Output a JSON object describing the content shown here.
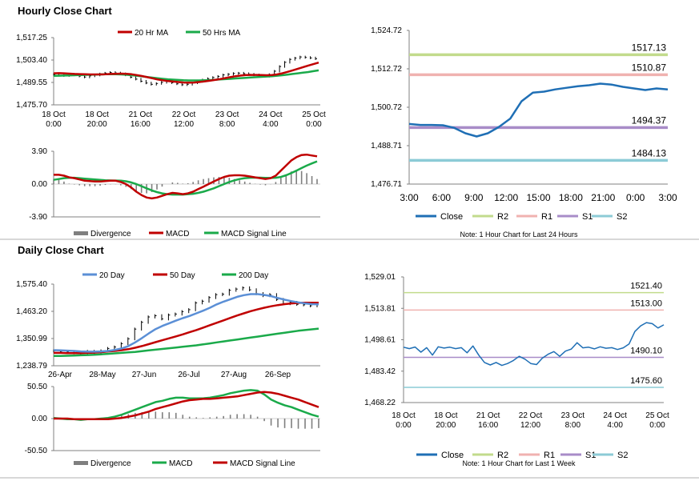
{
  "colors": {
    "ma20_hourly": "#c00000",
    "ma50_hourly": "#1aaa4a",
    "close": "#1f6fb5",
    "r2": "#c2db8c",
    "r1": "#f0b2b0",
    "s1": "#a88cc8",
    "s2": "#8ccbd6",
    "ma20_daily": "#5b8fd6",
    "ma50_daily": "#c00000",
    "ma200_daily": "#1aaa4a",
    "divergence": "#7f7f7f",
    "price": "#000000"
  },
  "sections": {
    "hourly": {
      "title": "Hourly Close Chart"
    },
    "daily": {
      "title": "Daily Close Chart"
    }
  },
  "chart_data": [
    {
      "id": "hourly_price",
      "type": "line",
      "legend": [
        "20 Hr MA",
        "50 Hrs MA"
      ],
      "ylim": [
        1475.7,
        1517.25
      ],
      "yticks": [
        "1,517.25",
        "1,503.40",
        "1,489.55",
        "1,475.70"
      ],
      "x_labels": [
        {
          "line1": "18 Oct",
          "line2": "0:00"
        },
        {
          "line1": "18 Oct",
          "line2": "20:00"
        },
        {
          "line1": "21 Oct",
          "line2": "16:00"
        },
        {
          "line1": "22 Oct",
          "line2": "12:00"
        },
        {
          "line1": "23 Oct",
          "line2": "8:00"
        },
        {
          "line1": "24 Oct",
          "line2": "4:00"
        },
        {
          "line1": "25 Oct",
          "line2": "0:00"
        }
      ],
      "series": [
        {
          "name": "Price",
          "values": [
            1494.5,
            1495.0,
            1493.8,
            1494.6,
            1494.2,
            1493.5,
            1492.9,
            1493.6,
            1494.1,
            1494.8,
            1495.3,
            1495.7,
            1495.4,
            1494.9,
            1494.2,
            1492.8,
            1491.6,
            1490.3,
            1489.2,
            1488.4,
            1488.9,
            1489.6,
            1490.1,
            1489.4,
            1488.7,
            1488.1,
            1488.4,
            1489.3,
            1490.2,
            1491.1,
            1491.9,
            1492.6,
            1493.3,
            1494.2,
            1494.6,
            1495.1,
            1495.3,
            1495.0,
            1494.6,
            1494.2,
            1493.7,
            1493.4,
            1494.4,
            1496.5,
            1499.4,
            1502.0,
            1503.8,
            1504.6,
            1505.3,
            1505.0,
            1504.7,
            1504.2
          ]
        },
        {
          "name": "20 Hr MA",
          "values": [
            1495.2,
            1495.3,
            1495.2,
            1495.0,
            1494.8,
            1494.7,
            1494.6,
            1494.5,
            1494.5,
            1494.5,
            1494.6,
            1494.8,
            1494.9,
            1495.0,
            1494.9,
            1494.6,
            1494.1,
            1493.5,
            1492.8,
            1492.1,
            1491.4,
            1490.9,
            1490.4,
            1490.1,
            1489.8,
            1489.5,
            1489.4,
            1489.5,
            1489.8,
            1490.2,
            1490.6,
            1491.1,
            1491.6,
            1492.2,
            1492.8,
            1493.4,
            1493.8,
            1494.1,
            1494.2,
            1494.2,
            1494.1,
            1494.0,
            1494.1,
            1494.5,
            1495.2,
            1496.1,
            1497.0,
            1498.0,
            1499.0,
            1500.0,
            1500.9,
            1501.8
          ]
        },
        {
          "name": "50 Hrs MA",
          "values": [
            1493.6,
            1493.7,
            1493.8,
            1493.9,
            1494.0,
            1494.1,
            1494.2,
            1494.3,
            1494.4,
            1494.5,
            1494.6,
            1494.6,
            1494.6,
            1494.5,
            1494.3,
            1494.0,
            1493.7,
            1493.3,
            1492.9,
            1492.5,
            1492.1,
            1491.8,
            1491.5,
            1491.3,
            1491.1,
            1490.9,
            1490.8,
            1490.8,
            1490.8,
            1490.9,
            1491.0,
            1491.2,
            1491.4,
            1491.6,
            1491.8,
            1492.0,
            1492.2,
            1492.4,
            1492.6,
            1492.8,
            1493.0,
            1493.2,
            1493.4,
            1493.7,
            1494.0,
            1494.4,
            1494.8,
            1495.2,
            1495.6,
            1496.0,
            1496.5,
            1497.0
          ]
        }
      ]
    },
    {
      "id": "hourly_macd",
      "type": "line",
      "legend": [
        "Divergence",
        "MACD",
        "MACD Signal Line"
      ],
      "ylim": [
        -3.9,
        3.9
      ],
      "yticks": [
        "3.90",
        "0.00",
        "-3.90"
      ],
      "series": [
        {
          "name": "MACD",
          "values": [
            1.1,
            1.1,
            1.0,
            0.8,
            0.7,
            0.55,
            0.4,
            0.35,
            0.3,
            0.3,
            0.35,
            0.4,
            0.4,
            0.25,
            0.0,
            -0.4,
            -0.9,
            -1.3,
            -1.6,
            -1.7,
            -1.6,
            -1.4,
            -1.2,
            -1.05,
            -1.1,
            -1.2,
            -1.1,
            -0.9,
            -0.6,
            -0.3,
            0.0,
            0.3,
            0.6,
            0.85,
            1.0,
            1.05,
            1.05,
            1.0,
            0.9,
            0.8,
            0.7,
            0.6,
            0.7,
            1.0,
            1.6,
            2.2,
            2.8,
            3.2,
            3.45,
            3.5,
            3.4,
            3.3
          ]
        },
        {
          "name": "MACD Signal Line",
          "values": [
            0.5,
            0.6,
            0.7,
            0.75,
            0.75,
            0.7,
            0.65,
            0.6,
            0.55,
            0.5,
            0.45,
            0.43,
            0.42,
            0.4,
            0.33,
            0.2,
            0.0,
            -0.25,
            -0.5,
            -0.75,
            -0.95,
            -1.1,
            -1.2,
            -1.25,
            -1.25,
            -1.25,
            -1.2,
            -1.15,
            -1.05,
            -0.9,
            -0.7,
            -0.5,
            -0.25,
            0.0,
            0.25,
            0.45,
            0.6,
            0.7,
            0.75,
            0.77,
            0.76,
            0.74,
            0.72,
            0.75,
            0.85,
            1.05,
            1.3,
            1.6,
            1.9,
            2.2,
            2.45,
            2.7
          ]
        }
      ]
    },
    {
      "id": "hourly_24h",
      "type": "line",
      "ylim": [
        1476.71,
        1524.72
      ],
      "yticks": [
        "1,524.72",
        "1,512.72",
        "1,500.72",
        "1,488.71",
        "1,476.71"
      ],
      "x_labels": [
        "3:00",
        "6:00",
        "9:00",
        "12:00",
        "15:00",
        "18:00",
        "21:00",
        "0:00",
        "3:00"
      ],
      "levels": [
        {
          "name": "R2",
          "value": 1517.13,
          "label": "1517.13"
        },
        {
          "name": "R1",
          "value": 1510.87,
          "label": "1510.87"
        },
        {
          "name": "S1",
          "value": 1494.37,
          "label": "1494.37"
        },
        {
          "name": "S2",
          "value": 1484.13,
          "label": "1484.13"
        }
      ],
      "legend": [
        "Close",
        "R2",
        "R1",
        "S1",
        "S2"
      ],
      "note": "Note: 1 Hour Chart for Last 24 Hours",
      "series": [
        {
          "name": "Close",
          "values": [
            1495.5,
            1495.2,
            1495.2,
            1495.1,
            1494.3,
            1492.6,
            1491.6,
            1492.6,
            1494.6,
            1497.2,
            1502.6,
            1505.3,
            1505.6,
            1506.3,
            1506.8,
            1507.3,
            1507.6,
            1508.1,
            1507.8,
            1507.1,
            1506.6,
            1506.1,
            1506.6,
            1506.3
          ]
        }
      ]
    },
    {
      "id": "daily_price",
      "type": "line",
      "legend": [
        "20 Day",
        "50 Day",
        "200 Day"
      ],
      "ylim": [
        1238.79,
        1575.4
      ],
      "yticks": [
        "1,575.40",
        "1,463.20",
        "1,350.99",
        "1,238.79"
      ],
      "x_labels": [
        "26-Apr",
        "28-May",
        "27-Jun",
        "26-Jul",
        "27-Aug",
        "26-Sep"
      ],
      "series": [
        {
          "name": "Price",
          "values": [
            1300,
            1298,
            1295,
            1292,
            1290,
            1298,
            1293,
            1300,
            1310,
            1316,
            1330,
            1350,
            1390,
            1418,
            1440,
            1445,
            1432,
            1448,
            1452,
            1462,
            1470,
            1498,
            1505,
            1520,
            1532,
            1534,
            1550,
            1555,
            1560,
            1552,
            1536,
            1528,
            1532,
            1512,
            1495,
            1500,
            1492,
            1490,
            1486,
            1490
          ]
        },
        {
          "name": "20 Day",
          "values": [
            1303,
            1302,
            1301,
            1300,
            1298,
            1297,
            1297,
            1298,
            1300,
            1304,
            1310,
            1320,
            1335,
            1353,
            1372,
            1390,
            1403,
            1414,
            1425,
            1435,
            1444,
            1455,
            1466,
            1478,
            1492,
            1503,
            1513,
            1523,
            1530,
            1534,
            1534,
            1531,
            1526,
            1518,
            1511,
            1505,
            1500,
            1496,
            1493,
            1492
          ]
        },
        {
          "name": "50 Day",
          "values": [
            1292,
            1292,
            1291,
            1291,
            1291,
            1292,
            1293,
            1295,
            1298,
            1300,
            1303,
            1307,
            1313,
            1320,
            1328,
            1336,
            1344,
            1352,
            1360,
            1368,
            1377,
            1386,
            1396,
            1406,
            1416,
            1426,
            1436,
            1446,
            1455,
            1464,
            1471,
            1478,
            1484,
            1489,
            1493,
            1496,
            1498,
            1499,
            1499,
            1499
          ]
        },
        {
          "name": "200 Day",
          "values": [
            1279,
            1279,
            1280,
            1281,
            1282,
            1283,
            1284,
            1286,
            1288,
            1290,
            1292,
            1294,
            1296,
            1299,
            1302,
            1305,
            1308,
            1311,
            1314,
            1317,
            1320,
            1323,
            1327,
            1331,
            1335,
            1339,
            1343,
            1347,
            1351,
            1355,
            1359,
            1363,
            1367,
            1371,
            1375,
            1379,
            1383,
            1386,
            1389,
            1392
          ]
        }
      ]
    },
    {
      "id": "daily_macd",
      "type": "line",
      "legend": [
        "Divergence",
        "MACD",
        "MACD Signal Line"
      ],
      "ylim": [
        -50.5,
        50.5
      ],
      "yticks": [
        "50.50",
        "0.00",
        "-50.50"
      ],
      "series": [
        {
          "name": "MACD",
          "values": [
            1,
            0,
            -1,
            -1,
            -2,
            -1,
            -1,
            0,
            1,
            3,
            6,
            10,
            14,
            18,
            22,
            26,
            28,
            31,
            33,
            33,
            32,
            32,
            32,
            33,
            35,
            37,
            40,
            42,
            44,
            45,
            44,
            38,
            30,
            25,
            21,
            18,
            14,
            10,
            6,
            3
          ]
        },
        {
          "name": "MACD Signal Line",
          "values": [
            0,
            0,
            0,
            -1,
            -1,
            -1,
            -1,
            -1,
            -1,
            0,
            1,
            3,
            5,
            8,
            11,
            15,
            18,
            21,
            24,
            27,
            29,
            30,
            31,
            31,
            32,
            33,
            34,
            35,
            37,
            39,
            41,
            42,
            41,
            39,
            36,
            33,
            30,
            26,
            22,
            18
          ]
        }
      ]
    },
    {
      "id": "daily_week",
      "type": "line",
      "ylim": [
        1468.22,
        1529.01
      ],
      "yticks": [
        "1,529.01",
        "1,513.81",
        "1,498.61",
        "1,483.42",
        "1,468.22"
      ],
      "x_labels": [
        {
          "line1": "18 Oct",
          "line2": "0:00"
        },
        {
          "line1": "18 Oct",
          "line2": "20:00"
        },
        {
          "line1": "21 Oct",
          "line2": "16:00"
        },
        {
          "line1": "22 Oct",
          "line2": "12:00"
        },
        {
          "line1": "23 Oct",
          "line2": "8:00"
        },
        {
          "line1": "24 Oct",
          "line2": "4:00"
        },
        {
          "line1": "25 Oct",
          "line2": "0:00"
        }
      ],
      "levels": [
        {
          "name": "R2",
          "value": 1521.4,
          "label": "1521.40"
        },
        {
          "name": "R1",
          "value": 1513.0,
          "label": "1513.00"
        },
        {
          "name": "S1",
          "value": 1490.1,
          "label": "1490.10"
        },
        {
          "name": "S2",
          "value": 1475.6,
          "label": "1475.60"
        }
      ],
      "legend": [
        "Close",
        "R2",
        "R1",
        "S1",
        "S2"
      ],
      "note": "Note: 1 Hour Chart for Last 1 Week",
      "series": [
        {
          "name": "Close",
          "values": [
            1495.0,
            1494.3,
            1495.1,
            1492.6,
            1494.8,
            1491.2,
            1495.2,
            1494.6,
            1495.0,
            1494.3,
            1494.8,
            1492.3,
            1495.6,
            1491.2,
            1487.6,
            1486.4,
            1487.6,
            1486.2,
            1487.1,
            1488.6,
            1490.6,
            1489.2,
            1487.1,
            1486.6,
            1489.7,
            1491.6,
            1492.9,
            1490.6,
            1493.1,
            1494.1,
            1497.2,
            1494.7,
            1495.0,
            1494.2,
            1495.2,
            1494.5,
            1494.8,
            1493.9,
            1494.7,
            1496.6,
            1502.6,
            1505.3,
            1506.9,
            1506.4,
            1504.3,
            1505.8
          ]
        }
      ]
    }
  ]
}
